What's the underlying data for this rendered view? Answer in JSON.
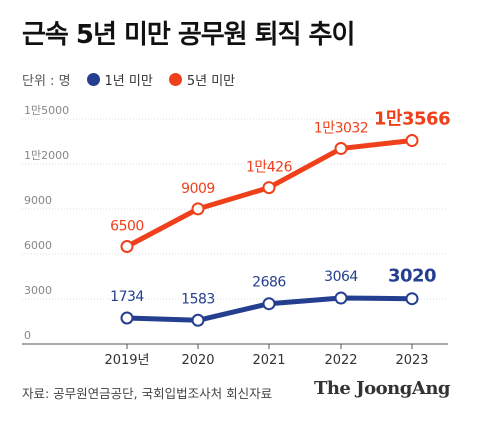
{
  "header": {
    "title": "근속 5년 미만 공무원 퇴직 추이"
  },
  "legend": {
    "unit": "단위 : 명"
  },
  "footer": {
    "source": "자료: 공무원연금공단, 국회입법조사처 회신자료",
    "brand": "The JoongAng"
  },
  "colors": {
    "series1": "#243f8f",
    "series2": "#f0401b",
    "axis": "#999999",
    "grid": "#dddddd"
  },
  "chart_data": {
    "type": "line",
    "categories": [
      "2019년",
      "2020",
      "2021",
      "2022",
      "2023"
    ],
    "series": [
      {
        "name": "1년 미만",
        "values": [
          1734,
          1583,
          2686,
          3064,
          3020
        ],
        "labels": [
          "1734",
          "1583",
          "2686",
          "3064",
          "3020"
        ]
      },
      {
        "name": "5년 미만",
        "values": [
          6500,
          9009,
          10426,
          13032,
          13566
        ],
        "labels": [
          "6500",
          "9009",
          "1만426",
          "1만3032",
          "1만3566"
        ]
      }
    ],
    "yticks": [
      0,
      3000,
      6000,
      9000,
      12000,
      15000
    ],
    "ytick_labels": [
      "0",
      "3000",
      "6000",
      "9000",
      "1만2000",
      "1만5000"
    ],
    "ylim": [
      0,
      15000
    ]
  }
}
